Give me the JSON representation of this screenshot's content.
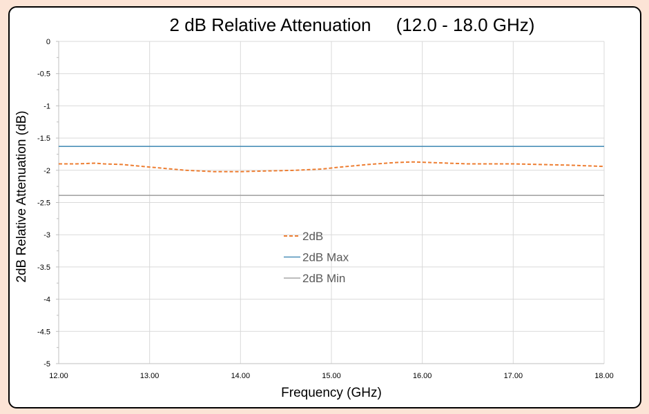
{
  "chart_data": {
    "type": "line",
    "title": "2 dB Relative Attenuation     (12.0 - 18.0 GHz)",
    "xlabel": "Frequency (GHz)",
    "ylabel": "2dB Relative Attenuation (dB)",
    "xlim": [
      12,
      18
    ],
    "ylim": [
      -5,
      0
    ],
    "x_ticks": [
      "12.00",
      "13.00",
      "14.00",
      "15.00",
      "16.00",
      "17.00",
      "18.00"
    ],
    "y_ticks": [
      "0",
      "-0.5",
      "-1",
      "-1.5",
      "-2",
      "-2.5",
      "-3",
      "-3.5",
      "-4",
      "-4.5",
      "-5"
    ],
    "grid": true,
    "legend_position": "center",
    "series": [
      {
        "name": "2dB",
        "color": "#ed7d31",
        "dash": "dashed",
        "x": [
          12.0,
          12.2,
          12.4,
          12.5,
          12.7,
          13.0,
          13.4,
          13.7,
          13.85,
          14.0,
          14.3,
          14.6,
          14.9,
          15.1,
          15.4,
          15.7,
          15.9,
          16.1,
          16.5,
          17.0,
          17.3,
          17.6,
          18.0
        ],
        "y": [
          -1.9,
          -1.9,
          -1.89,
          -1.9,
          -1.91,
          -1.95,
          -2.0,
          -2.02,
          -2.02,
          -2.02,
          -2.01,
          -2.0,
          -1.98,
          -1.95,
          -1.91,
          -1.88,
          -1.87,
          -1.88,
          -1.9,
          -1.9,
          -1.91,
          -1.92,
          -1.94
        ]
      },
      {
        "name": "2dB Max",
        "color": "#4a8fb8",
        "dash": "solid",
        "x": [
          12.0,
          18.0
        ],
        "y": [
          -1.63,
          -1.63
        ]
      },
      {
        "name": "2dB Min",
        "color": "#a5a5a5",
        "dash": "solid",
        "x": [
          12.0,
          18.0
        ],
        "y": [
          -2.39,
          -2.39
        ]
      }
    ]
  }
}
